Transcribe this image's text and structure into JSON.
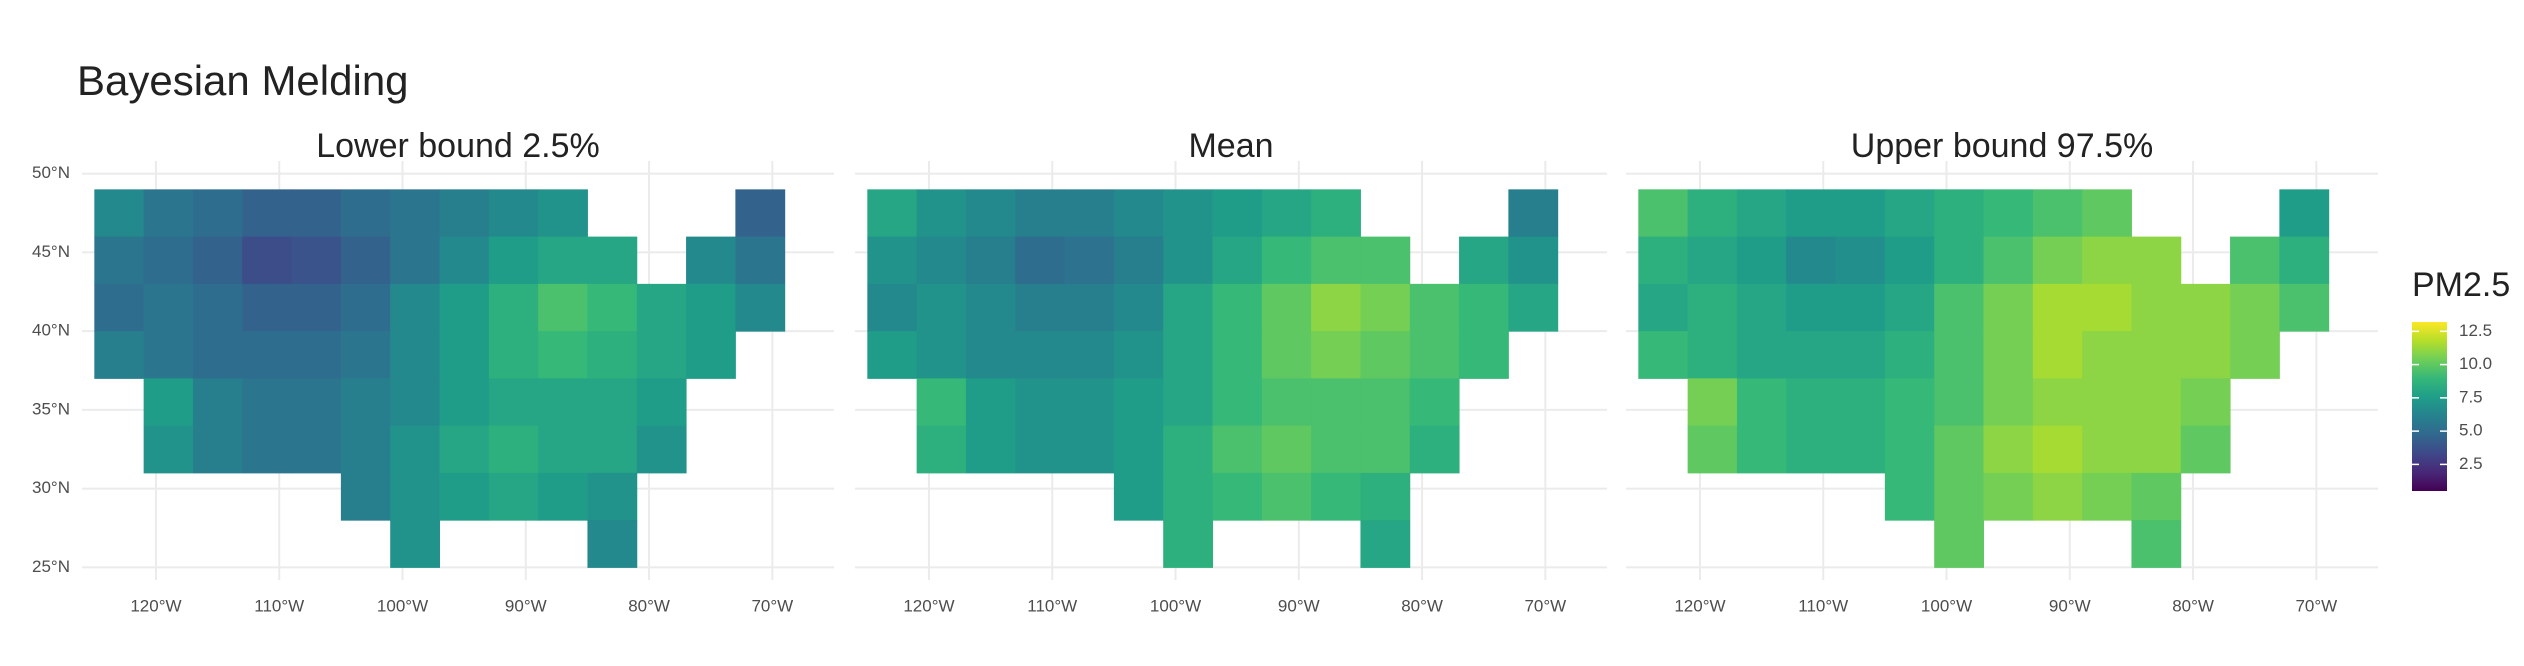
{
  "chart_data": {
    "type": "heatmap",
    "title": "Bayesian Melding",
    "x": [
      -123,
      -119,
      -115,
      -111,
      -107,
      -103,
      -99,
      -95,
      -91,
      -87,
      -83,
      -79,
      -75,
      -71,
      -67
    ],
    "y": [
      47.5,
      44.5,
      41.5,
      38.5,
      35.5,
      32.5,
      29.5,
      26.5
    ],
    "xlim": [
      -126,
      -65
    ],
    "ylim": [
      24.2,
      50.8
    ],
    "xticks": [
      {
        "value": -120,
        "label": "120°W"
      },
      {
        "value": -110,
        "label": "110°W"
      },
      {
        "value": -100,
        "label": "100°W"
      },
      {
        "value": -90,
        "label": "90°W"
      },
      {
        "value": -80,
        "label": "80°W"
      },
      {
        "value": -70,
        "label": "70°W"
      }
    ],
    "yticks": [
      {
        "value": 25,
        "label": "25°N"
      },
      {
        "value": 30,
        "label": "30°N"
      },
      {
        "value": 35,
        "label": "35°N"
      },
      {
        "value": 40,
        "label": "40°N"
      },
      {
        "value": 45,
        "label": "45°N"
      },
      {
        "value": 50,
        "label": "50°N"
      }
    ],
    "grid": true,
    "panels": [
      {
        "title": "Lower bound 2.5%",
        "values": [
          [
            6.5,
            5.5,
            5,
            4.5,
            4.5,
            5,
            5.5,
            6,
            6.5,
            7,
            null,
            null,
            null,
            4.5,
            null
          ],
          [
            5.5,
            5,
            4.5,
            3.5,
            3.8,
            4.5,
            5.5,
            6.5,
            7.5,
            8,
            8,
            null,
            6.5,
            5.5,
            null
          ],
          [
            5,
            5.5,
            5,
            4.5,
            4.5,
            5,
            6.5,
            7.5,
            8.5,
            9.5,
            9,
            8,
            7.5,
            6.5,
            null
          ],
          [
            6,
            5.5,
            5,
            5,
            5,
            5.5,
            6.5,
            7.5,
            8.5,
            9,
            8.5,
            8,
            7.5,
            null,
            null
          ],
          [
            null,
            7.5,
            6,
            5.5,
            5.5,
            6,
            6.5,
            7.5,
            8,
            8,
            8,
            7.5,
            null,
            null,
            null
          ],
          [
            null,
            7,
            6,
            5.5,
            5.5,
            6,
            7,
            8,
            8.5,
            8,
            8,
            7,
            null,
            null,
            null
          ],
          [
            null,
            null,
            null,
            null,
            null,
            6,
            7,
            7.5,
            8,
            7.5,
            7,
            null,
            null,
            null,
            null
          ],
          [
            null,
            null,
            null,
            null,
            null,
            null,
            7,
            null,
            null,
            null,
            6.5,
            null,
            null,
            null,
            null
          ]
        ]
      },
      {
        "title": "Mean",
        "values": [
          [
            8,
            7,
            6.5,
            6,
            6,
            6.5,
            7,
            7.5,
            8,
            8.5,
            null,
            null,
            null,
            6,
            null
          ],
          [
            7,
            6.5,
            6,
            5,
            5.3,
            6,
            7,
            8,
            9,
            9.5,
            9.5,
            null,
            8,
            7,
            null
          ],
          [
            6.5,
            7,
            6.5,
            6,
            6,
            6.5,
            8,
            9,
            10,
            11,
            10.5,
            9.5,
            9,
            8,
            null
          ],
          [
            7.5,
            7,
            6.5,
            6.5,
            6.5,
            7,
            8,
            9,
            10,
            10.5,
            10,
            9.5,
            9,
            null,
            null
          ],
          [
            null,
            9,
            7.5,
            7,
            7,
            7.5,
            8,
            9,
            9.5,
            9.5,
            9.5,
            9,
            null,
            null,
            null
          ],
          [
            null,
            8.5,
            7.5,
            7,
            7,
            7.5,
            8.5,
            9.5,
            10,
            9.5,
            9.5,
            8.5,
            null,
            null,
            null
          ],
          [
            null,
            null,
            null,
            null,
            null,
            7.5,
            8.5,
            9,
            9.5,
            9,
            8.5,
            null,
            null,
            null,
            null
          ],
          [
            null,
            null,
            null,
            null,
            null,
            null,
            8.5,
            null,
            null,
            null,
            8,
            null,
            null,
            null,
            null
          ]
        ]
      },
      {
        "title": "Upper bound 97.5%",
        "values": [
          [
            9.5,
            8.5,
            8,
            7.5,
            7.5,
            8,
            8.5,
            9,
            9.5,
            10,
            null,
            null,
            null,
            7.5,
            null
          ],
          [
            8.5,
            8,
            7.5,
            6.5,
            6.8,
            7.5,
            8.5,
            9.5,
            10.5,
            11,
            11,
            null,
            9.5,
            8.5,
            null
          ],
          [
            8,
            8.5,
            8,
            7.5,
            7.5,
            8,
            9.5,
            10.5,
            11.5,
            11.5,
            11,
            11,
            10.5,
            9.5,
            null
          ],
          [
            9,
            8.5,
            8,
            8,
            8,
            8.5,
            9.5,
            10.5,
            11.5,
            11,
            11,
            11,
            10.5,
            null,
            null
          ],
          [
            null,
            10.5,
            9,
            8.5,
            8.5,
            9,
            9.5,
            10.5,
            11,
            11,
            11,
            10.5,
            null,
            null,
            null
          ],
          [
            null,
            10,
            9,
            8.5,
            8.5,
            9,
            10,
            11,
            11.5,
            11,
            11,
            10,
            null,
            null,
            null
          ],
          [
            null,
            null,
            null,
            null,
            null,
            9,
            10,
            10.5,
            11,
            10.5,
            10,
            null,
            null,
            null,
            null
          ],
          [
            null,
            null,
            null,
            null,
            null,
            null,
            10,
            null,
            null,
            null,
            9.5,
            null,
            null,
            null,
            null
          ]
        ]
      }
    ],
    "colorbar": {
      "title": "PM2.5",
      "clim": [
        0.5,
        13.2
      ],
      "ticks": [
        2.5,
        {
          "value": 5,
          "label": "5.0"
        },
        7.5,
        {
          "value": 10,
          "label": "10.0"
        },
        12.5
      ],
      "colormap": [
        "#440154",
        "#482878",
        "#3e4989",
        "#31688e",
        "#26828e",
        "#1f9e89",
        "#35b779",
        "#6ece58",
        "#b5de2b",
        "#fde725"
      ]
    }
  }
}
